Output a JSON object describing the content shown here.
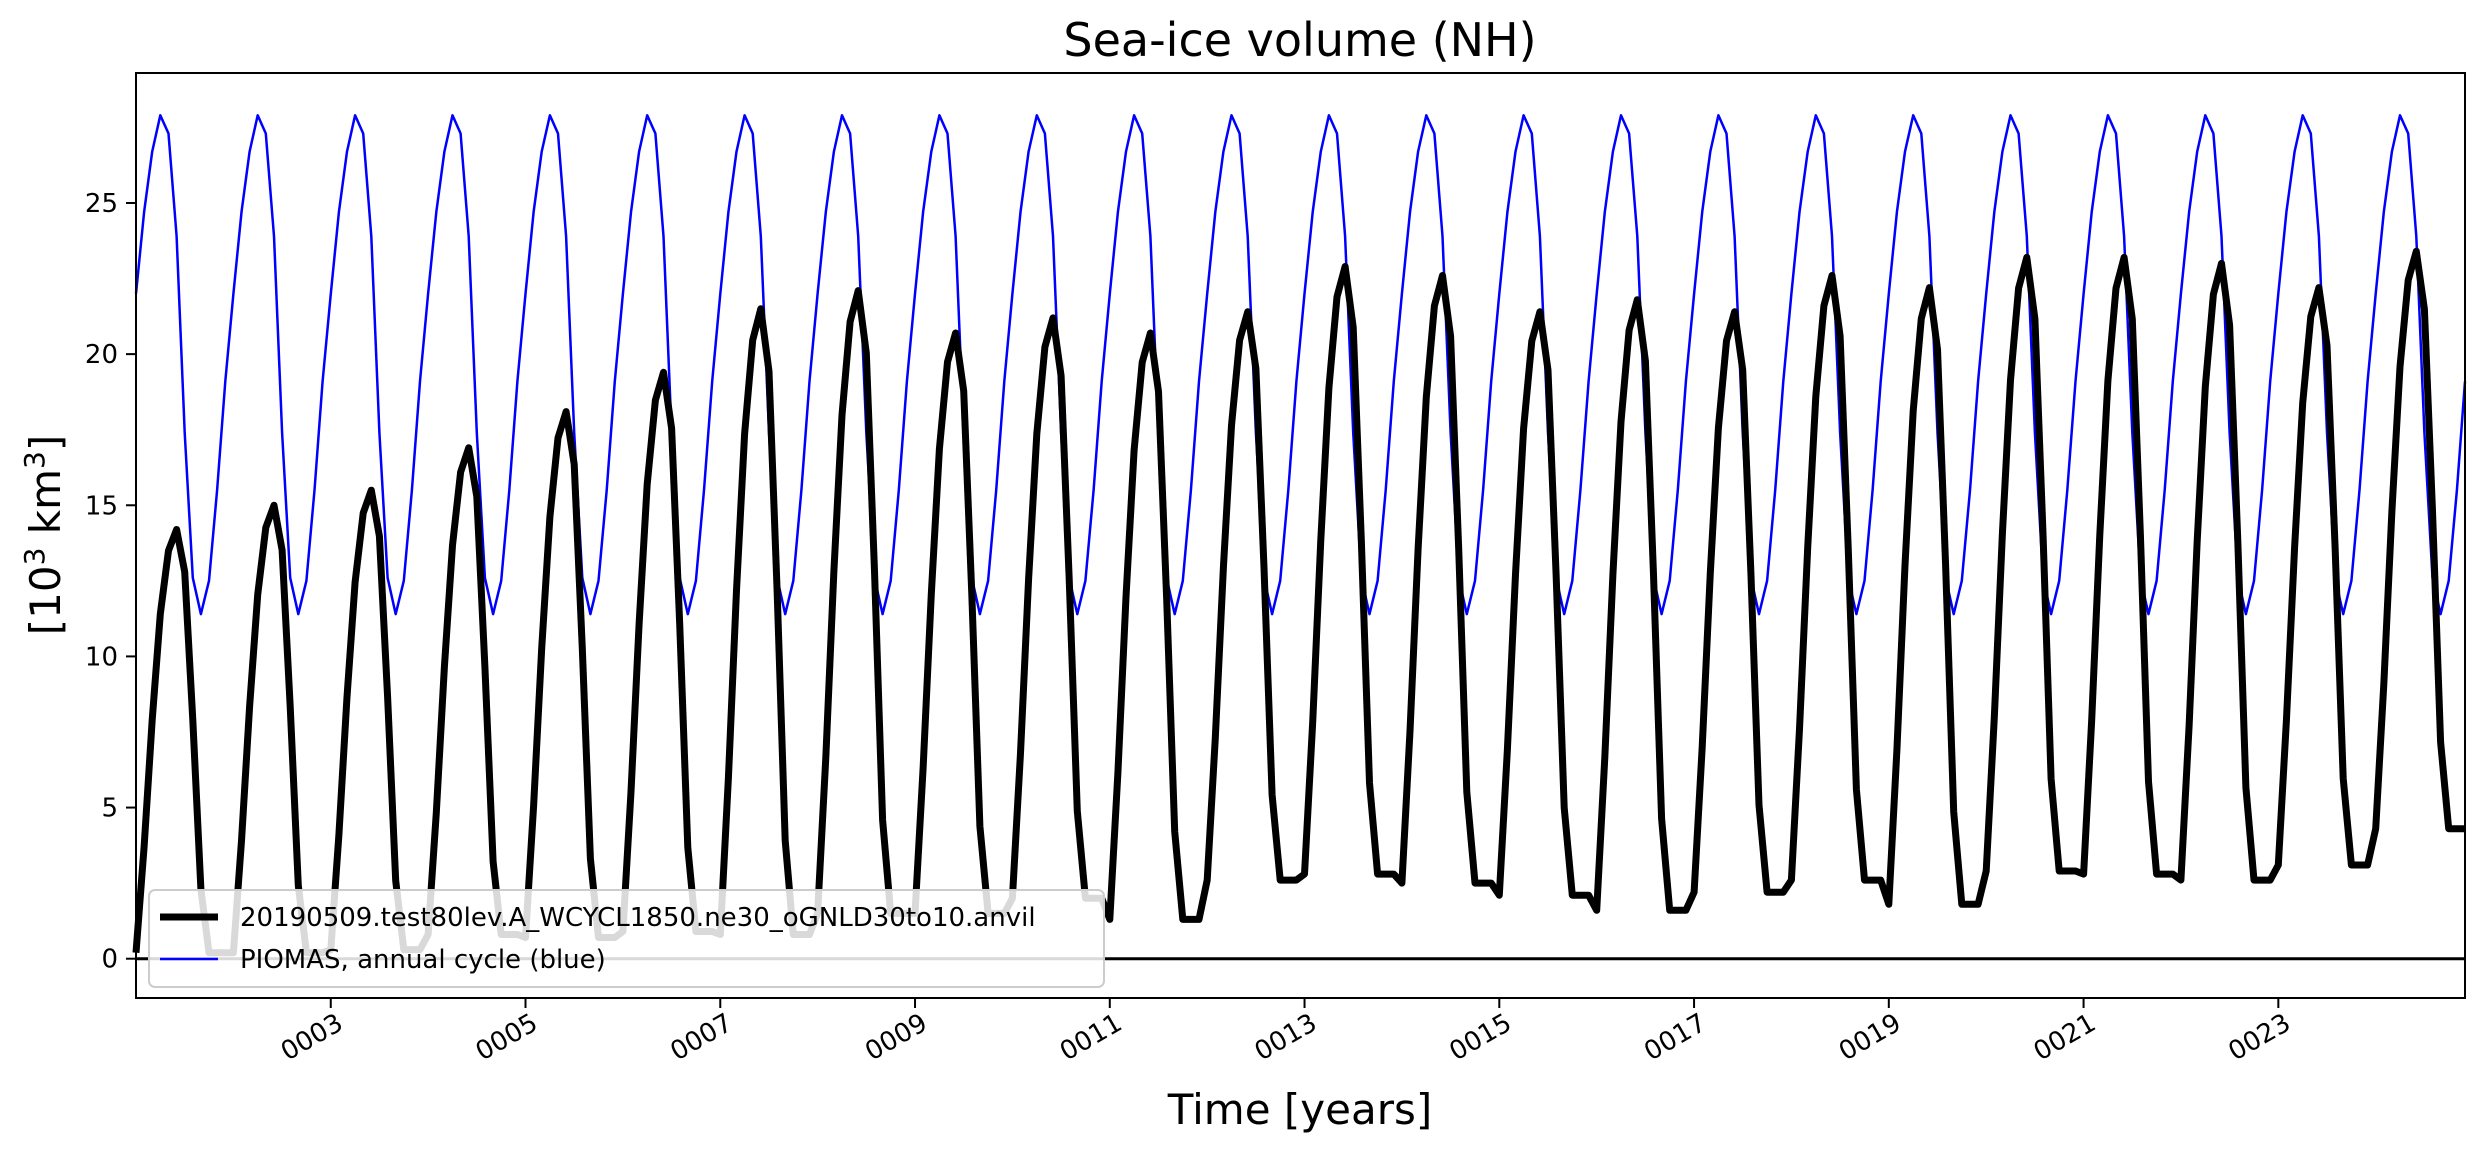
{
  "chart_data": {
    "type": "line",
    "title": "Sea-ice volume (NH)",
    "xlabel": "Time [years]",
    "ylabel_main": "[10",
    "ylabel_sup": "3",
    "ylabel_unit": " km",
    "ylabel_sup2": "3",
    "ylabel_close": "]",
    "ylim": [
      -1.3,
      29.3
    ],
    "xlim": [
      1.0,
      24.917
    ],
    "y_ticks": [
      0,
      5,
      10,
      15,
      20,
      25
    ],
    "y_tick_labels": [
      "0",
      "5",
      "10",
      "15",
      "20",
      "25"
    ],
    "x_ticks": [
      3,
      5,
      7,
      9,
      11,
      13,
      15,
      17,
      19,
      21,
      23
    ],
    "x_tick_labels": [
      "0003",
      "0005",
      "0007",
      "0009",
      "0011",
      "0013",
      "0015",
      "0017",
      "0019",
      "0021",
      "0023"
    ],
    "hline_y": 0,
    "grid": false,
    "legend_position": "lower-left",
    "series": [
      {
        "name": "20190509.test80lev.A_WCYCL1850.ne30_oGNLD30to10.anvil",
        "color": "#000000",
        "linewidth": 7,
        "start_year": 1,
        "annual_min": [
          0.2,
          0.2,
          0.3,
          0.8,
          0.7,
          0.9,
          0.8,
          1.5,
          1.5,
          2.0,
          1.3,
          2.6,
          2.8,
          2.5,
          2.1,
          1.6,
          2.2,
          2.6,
          1.8,
          2.9,
          2.8,
          2.6,
          3.1,
          4.3
        ],
        "annual_max": [
          14.2,
          15.0,
          15.5,
          16.9,
          18.1,
          19.4,
          21.5,
          22.1,
          20.7,
          21.2,
          20.7,
          21.4,
          22.9,
          22.6,
          21.4,
          21.8,
          21.4,
          22.6,
          22.2,
          23.2,
          23.2,
          23.0,
          22.2,
          23.4
        ]
      },
      {
        "name": "PIOMAS, annual cycle (blue)",
        "color": "#0000ff",
        "linewidth": 2.5,
        "monthly_cycle": [
          22.0,
          24.7,
          26.7,
          27.9,
          27.3,
          23.9,
          17.4,
          12.6,
          11.4,
          12.5,
          15.5,
          19.1
        ]
      }
    ]
  },
  "colors": {
    "model_line": "#000000",
    "piomas_line": "#0000ff",
    "zero_line": "#000000"
  }
}
